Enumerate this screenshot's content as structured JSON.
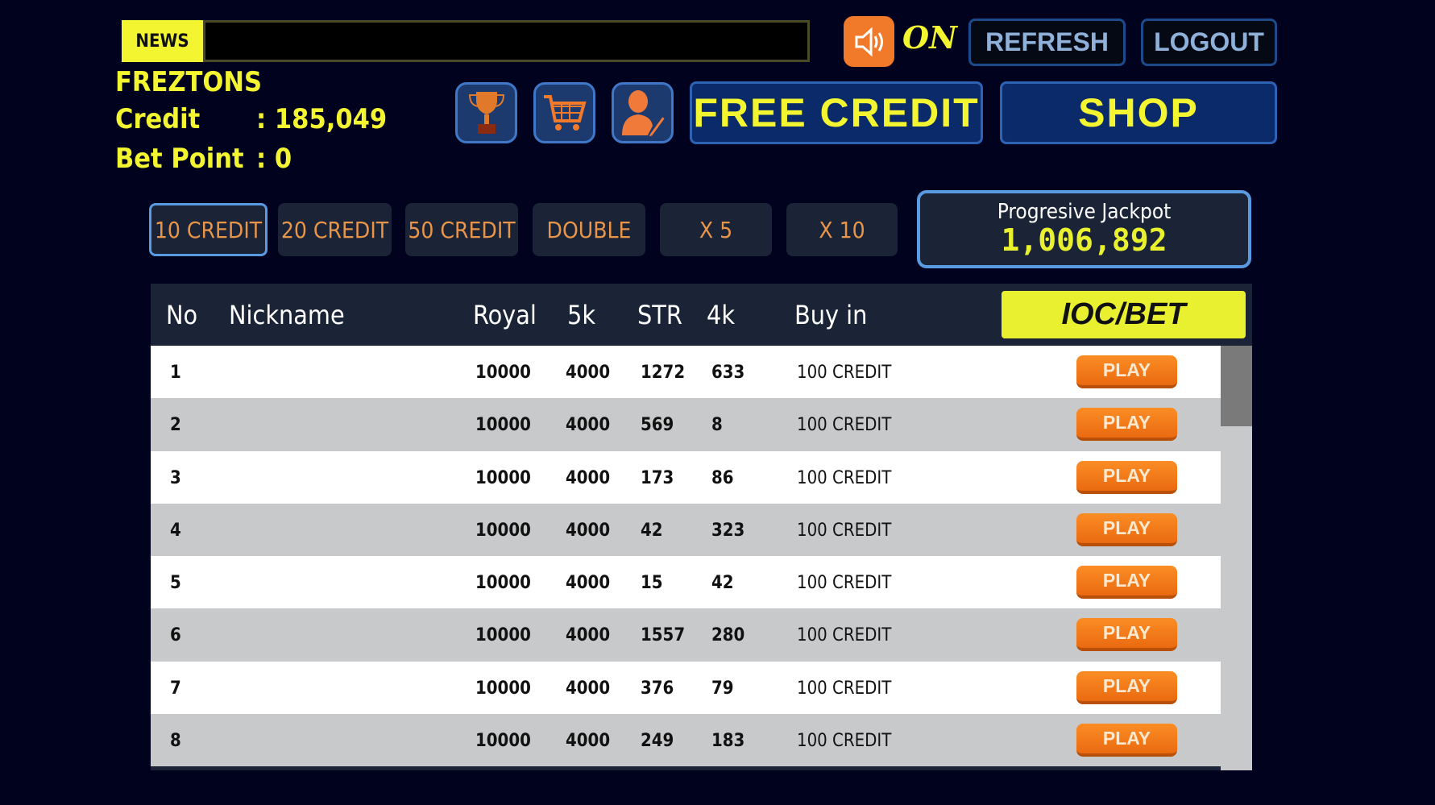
{
  "header": {
    "news_label": "NEWS",
    "news_text": "",
    "sound_state": "ON",
    "refresh": "REFRESH",
    "logout": "LOGOUT"
  },
  "player": {
    "name": "FREZTONS",
    "credit_label": "Credit",
    "credit_value": ": 185,049",
    "bet_label": "Bet Point",
    "bet_value": ": 0"
  },
  "icons": [
    "trophy-icon",
    "cart-icon",
    "profile-edit-icon",
    "speaker-icon"
  ],
  "actions": {
    "free_credit": "FREE CREDIT",
    "shop": "SHOP"
  },
  "bet_options": [
    {
      "label": "10 CREDIT",
      "selected": true
    },
    {
      "label": "20 CREDIT"
    },
    {
      "label": "50 CREDIT"
    },
    {
      "label": "DOUBLE"
    },
    {
      "label": "X 5"
    },
    {
      "label": "X 10"
    }
  ],
  "jackpot": {
    "title": "Progresive Jackpot",
    "value": "1,006,892"
  },
  "table": {
    "columns": [
      "No",
      "Nickname",
      "Royal",
      "5k",
      "STR",
      "4k",
      "Buy in"
    ],
    "bet_label": "IOC/BET",
    "play_label": "PLAY",
    "rows": [
      [
        "1",
        "",
        "10000",
        "4000",
        "1272",
        "633",
        "100 CREDIT"
      ],
      [
        "2",
        "",
        "10000",
        "4000",
        "569",
        "8",
        "100 CREDIT"
      ],
      [
        "3",
        "",
        "10000",
        "4000",
        "173",
        "86",
        "100 CREDIT"
      ],
      [
        "4",
        "",
        "10000",
        "4000",
        "42",
        "323",
        "100 CREDIT"
      ],
      [
        "5",
        "",
        "10000",
        "4000",
        "15",
        "42",
        "100 CREDIT"
      ],
      [
        "6",
        "",
        "10000",
        "4000",
        "1557",
        "280",
        "100 CREDIT"
      ],
      [
        "7",
        "",
        "10000",
        "4000",
        "376",
        "79",
        "100 CREDIT"
      ],
      [
        "8",
        "",
        "10000",
        "4000",
        "249",
        "183",
        "100 CREDIT"
      ]
    ]
  },
  "colors": {
    "background": "#01021e",
    "accent_yellow": "#f2f530",
    "play_orange": "#f07a20",
    "button_blue": "#0b2a6a"
  }
}
